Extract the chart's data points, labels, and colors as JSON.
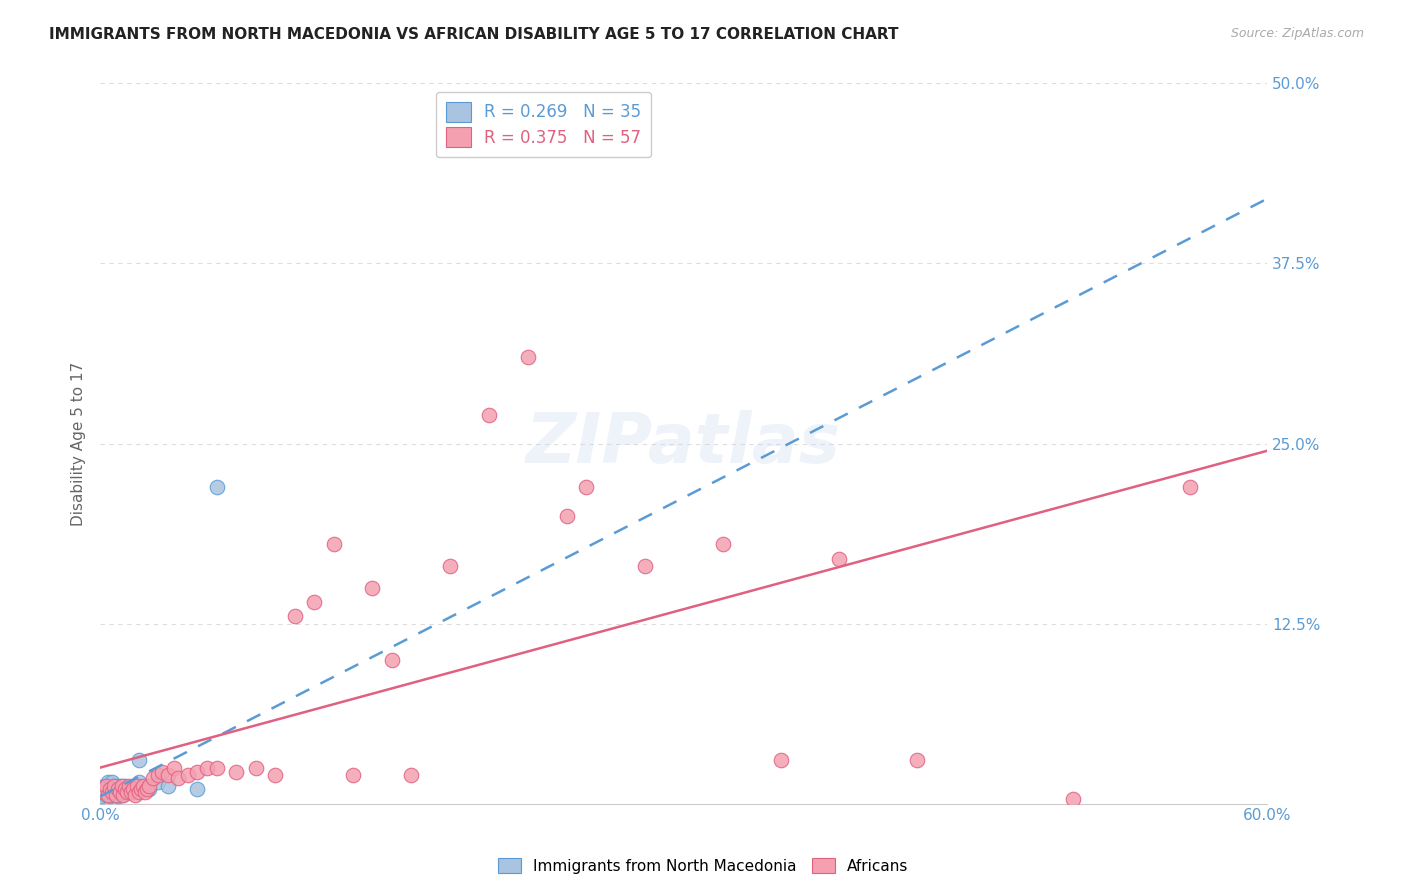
{
  "title": "IMMIGRANTS FROM NORTH MACEDONIA VS AFRICAN DISABILITY AGE 5 TO 17 CORRELATION CHART",
  "source": "Source: ZipAtlas.com",
  "ylabel": "Disability Age 5 to 17",
  "xlim": [
    0.0,
    0.6
  ],
  "ylim": [
    0.0,
    0.5
  ],
  "xticks": [
    0.0,
    0.1,
    0.2,
    0.3,
    0.4,
    0.5,
    0.6
  ],
  "yticks": [
    0.0,
    0.125,
    0.25,
    0.375,
    0.5
  ],
  "xticklabels": [
    "0.0%",
    "",
    "",
    "",
    "",
    "",
    "60.0%"
  ],
  "yticklabels": [
    "",
    "12.5%",
    "25.0%",
    "37.5%",
    "50.0%"
  ],
  "legend_1_label": "Immigrants from North Macedonia",
  "legend_2_label": "Africans",
  "R1": 0.269,
  "N1": 35,
  "R2": 0.375,
  "N2": 57,
  "color1": "#a8c4e0",
  "color2": "#f4a0b0",
  "trendline1_color": "#5b9bd5",
  "trendline2_color": "#e06080",
  "watermark": "ZIPatlas",
  "trendline1_start_y": 0.005,
  "trendline1_end_y": 0.42,
  "trendline2_start_y": 0.025,
  "trendline2_end_y": 0.245,
  "scatter1_x": [
    0.001,
    0.002,
    0.002,
    0.003,
    0.003,
    0.004,
    0.004,
    0.005,
    0.005,
    0.006,
    0.006,
    0.007,
    0.007,
    0.008,
    0.008,
    0.009,
    0.009,
    0.01,
    0.01,
    0.011,
    0.011,
    0.012,
    0.013,
    0.014,
    0.015,
    0.016,
    0.018,
    0.02,
    0.022,
    0.025,
    0.03,
    0.035,
    0.06,
    0.05,
    0.02
  ],
  "scatter1_y": [
    0.005,
    0.008,
    0.012,
    0.006,
    0.01,
    0.008,
    0.015,
    0.005,
    0.012,
    0.008,
    0.015,
    0.006,
    0.01,
    0.008,
    0.012,
    0.005,
    0.01,
    0.008,
    0.012,
    0.006,
    0.01,
    0.008,
    0.012,
    0.01,
    0.008,
    0.01,
    0.012,
    0.015,
    0.01,
    0.01,
    0.015,
    0.012,
    0.22,
    0.01,
    0.03
  ],
  "scatter2_x": [
    0.001,
    0.002,
    0.003,
    0.004,
    0.005,
    0.006,
    0.007,
    0.008,
    0.009,
    0.01,
    0.011,
    0.012,
    0.013,
    0.014,
    0.015,
    0.016,
    0.017,
    0.018,
    0.019,
    0.02,
    0.021,
    0.022,
    0.023,
    0.024,
    0.025,
    0.027,
    0.03,
    0.032,
    0.035,
    0.038,
    0.04,
    0.045,
    0.05,
    0.055,
    0.06,
    0.07,
    0.08,
    0.09,
    0.1,
    0.11,
    0.12,
    0.13,
    0.14,
    0.15,
    0.16,
    0.18,
    0.2,
    0.22,
    0.24,
    0.25,
    0.28,
    0.32,
    0.35,
    0.38,
    0.42,
    0.5,
    0.56
  ],
  "scatter2_y": [
    0.01,
    0.008,
    0.012,
    0.006,
    0.01,
    0.008,
    0.012,
    0.006,
    0.01,
    0.008,
    0.012,
    0.006,
    0.01,
    0.008,
    0.012,
    0.008,
    0.01,
    0.006,
    0.012,
    0.008,
    0.01,
    0.012,
    0.008,
    0.01,
    0.012,
    0.018,
    0.02,
    0.022,
    0.02,
    0.025,
    0.018,
    0.02,
    0.022,
    0.025,
    0.025,
    0.022,
    0.025,
    0.02,
    0.13,
    0.14,
    0.18,
    0.02,
    0.15,
    0.1,
    0.02,
    0.165,
    0.27,
    0.31,
    0.2,
    0.22,
    0.165,
    0.18,
    0.03,
    0.17,
    0.03,
    0.003,
    0.22
  ],
  "background_color": "#ffffff",
  "grid_color": "#dddddd",
  "title_color": "#222222",
  "axis_label_color": "#666666",
  "tick_label_color": "#5b9bd5",
  "title_fontsize": 11,
  "axis_label_fontsize": 11,
  "tick_fontsize": 11
}
